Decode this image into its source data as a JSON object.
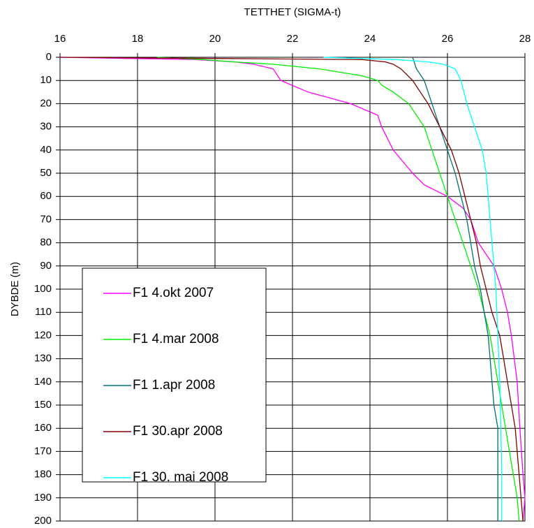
{
  "chart_data": {
    "type": "line",
    "title": "TETTHET (SIGMA-t)",
    "y_label": "DYBDE (m)",
    "xlim": [
      16,
      28
    ],
    "xticks": [
      16,
      18,
      20,
      22,
      24,
      26,
      28
    ],
    "ylim": [
      0,
      200
    ],
    "yticks": [
      0,
      10,
      20,
      30,
      40,
      50,
      60,
      70,
      80,
      90,
      100,
      110,
      120,
      130,
      140,
      150,
      160,
      170,
      180,
      190,
      200
    ],
    "y_reversed": true,
    "x_axis_position": "top",
    "grid": true,
    "series": [
      {
        "name": "F1 4.okt 2007",
        "color": "#ff00ff",
        "x": [
          16.0,
          19.5,
          20.5,
          21.0,
          21.5,
          21.7,
          22.4,
          23.5,
          24.2,
          24.3,
          24.6,
          25.1,
          25.4,
          26.0,
          26.4,
          26.6,
          26.8,
          27.2,
          27.4,
          27.55,
          27.65,
          27.8,
          27.87,
          27.95,
          28.0,
          27.95
        ],
        "y": [
          0,
          1,
          2,
          3,
          5,
          10,
          15,
          20,
          25,
          30,
          40,
          50,
          55,
          60,
          65,
          70,
          80,
          90,
          100,
          110,
          120,
          140,
          160,
          180,
          190,
          200
        ]
      },
      {
        "name": "F1 4.mar 2008",
        "color": "#00ee00",
        "x": [
          18.5,
          19.7,
          20.5,
          21.5,
          22.7,
          23.8,
          24.2,
          24.3,
          24.6,
          25.0,
          25.4,
          25.6,
          25.8,
          26.0,
          26.2,
          26.4,
          26.6,
          26.8,
          26.95,
          27.1,
          27.2,
          27.3,
          27.4,
          27.5,
          27.6,
          27.7,
          27.8,
          27.85
        ],
        "y": [
          0,
          1,
          2,
          3,
          5,
          8,
          10,
          12,
          15,
          20,
          30,
          40,
          50,
          60,
          70,
          80,
          90,
          100,
          110,
          120,
          130,
          140,
          150,
          160,
          170,
          180,
          190,
          200
        ]
      },
      {
        "name": "F1 1.apr 2008",
        "color": "#007070",
        "x": [
          25.1,
          25.2,
          25.4,
          25.5,
          25.6,
          25.8,
          26.0,
          26.2,
          26.35,
          26.5,
          26.6,
          26.7,
          26.85,
          26.95,
          27.05,
          27.1,
          27.15,
          27.2,
          27.3,
          27.3
        ],
        "y": [
          0,
          5,
          10,
          15,
          20,
          30,
          40,
          50,
          60,
          70,
          80,
          90,
          100,
          110,
          120,
          130,
          140,
          150,
          160,
          200
        ]
      },
      {
        "name": "F1 30.apr 2008",
        "color": "#800000",
        "x": [
          16.0,
          20.0,
          23.8,
          24.4,
          24.6,
          24.8,
          25.1,
          25.3,
          25.5,
          25.8,
          26.1,
          26.3,
          26.45,
          26.6,
          26.75,
          26.85,
          27.0,
          27.15,
          27.35,
          27.45,
          27.55,
          27.65,
          27.75,
          27.8,
          27.85,
          27.9,
          27.95
        ],
        "y": [
          0,
          0.5,
          1,
          2,
          3,
          5,
          10,
          15,
          20,
          30,
          40,
          50,
          60,
          70,
          80,
          90,
          100,
          110,
          120,
          130,
          140,
          150,
          160,
          170,
          180,
          190,
          200
        ]
      },
      {
        "name": "F1 30. mai 2008",
        "color": "#00ffff",
        "x": [
          22.8,
          24.7,
          25.5,
          25.9,
          26.2,
          26.35,
          26.5,
          26.7,
          26.9,
          27.0,
          27.05,
          27.15,
          27.25,
          27.3,
          27.35,
          27.38,
          27.4,
          27.4
        ],
        "y": [
          0,
          1,
          2,
          3,
          5,
          10,
          20,
          30,
          40,
          50,
          60,
          80,
          100,
          120,
          140,
          160,
          180,
          200
        ]
      }
    ]
  }
}
